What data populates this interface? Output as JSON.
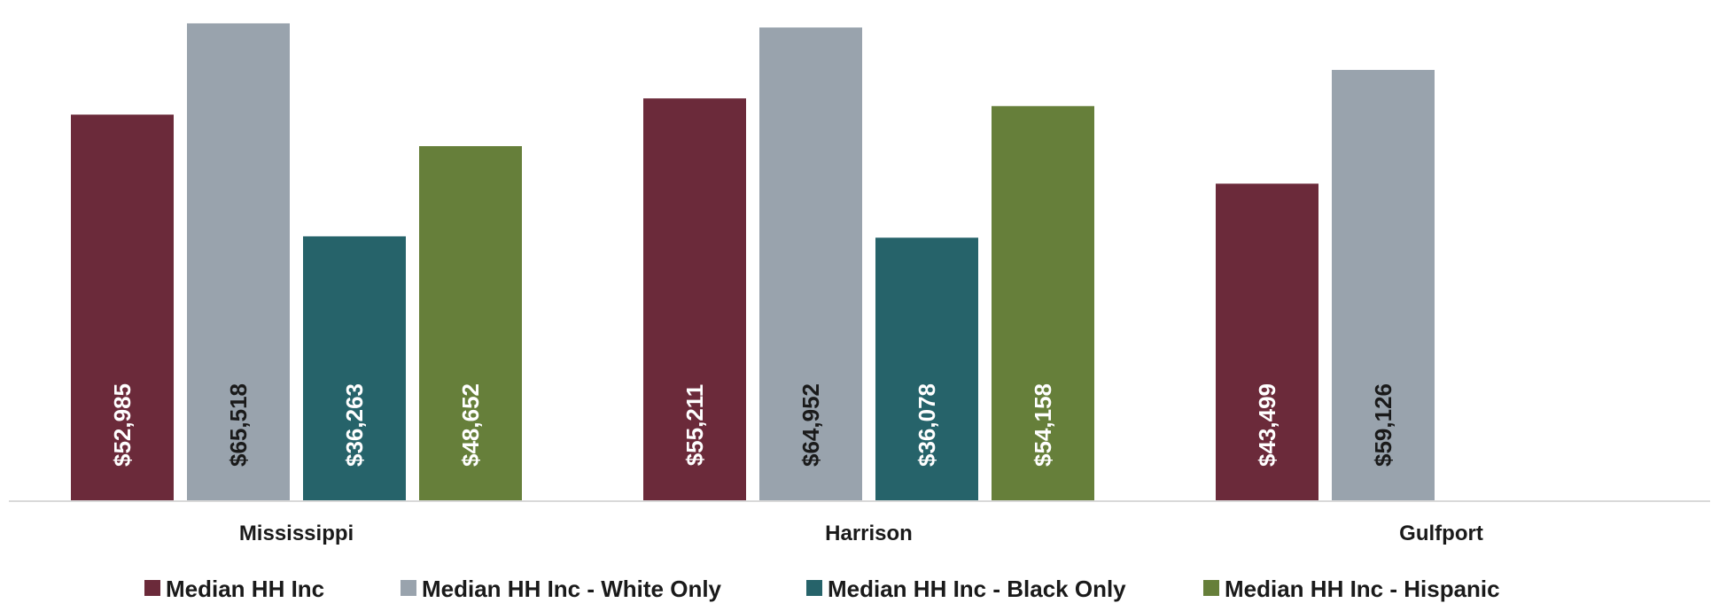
{
  "chart_data": {
    "type": "bar",
    "title": "",
    "xlabel": "",
    "ylabel": "",
    "ylim": [
      0,
      68000
    ],
    "grid": false,
    "legend_position": "bottom",
    "categories": [
      "Mississippi",
      "Harrison",
      "Gulfport"
    ],
    "series": [
      {
        "name": "Median HH Inc",
        "color": "#6b2a3a",
        "label_color": "#ffffff",
        "values": [
          52985,
          55211,
          43499
        ],
        "data_labels": [
          "$52,985",
          "$55,211",
          "$43,499"
        ]
      },
      {
        "name": "Median HH Inc - White Only",
        "color": "#99a3ad",
        "label_color": "#1a1a1a",
        "values": [
          65518,
          64952,
          59126
        ],
        "data_labels": [
          "$65,518",
          "$64,952",
          "$59,126"
        ]
      },
      {
        "name": "Median HH Inc - Black Only",
        "color": "#26636a",
        "label_color": "#ffffff",
        "values": [
          36263,
          36078,
          null
        ],
        "data_labels": [
          "$36,263",
          "$36,078",
          null
        ]
      },
      {
        "name": "Median HH Inc - Hispanic",
        "color": "#667f3a",
        "label_color": "#ffffff",
        "values": [
          48652,
          54158,
          null
        ],
        "data_labels": [
          "$48,652",
          "$54,158",
          null
        ]
      }
    ]
  }
}
